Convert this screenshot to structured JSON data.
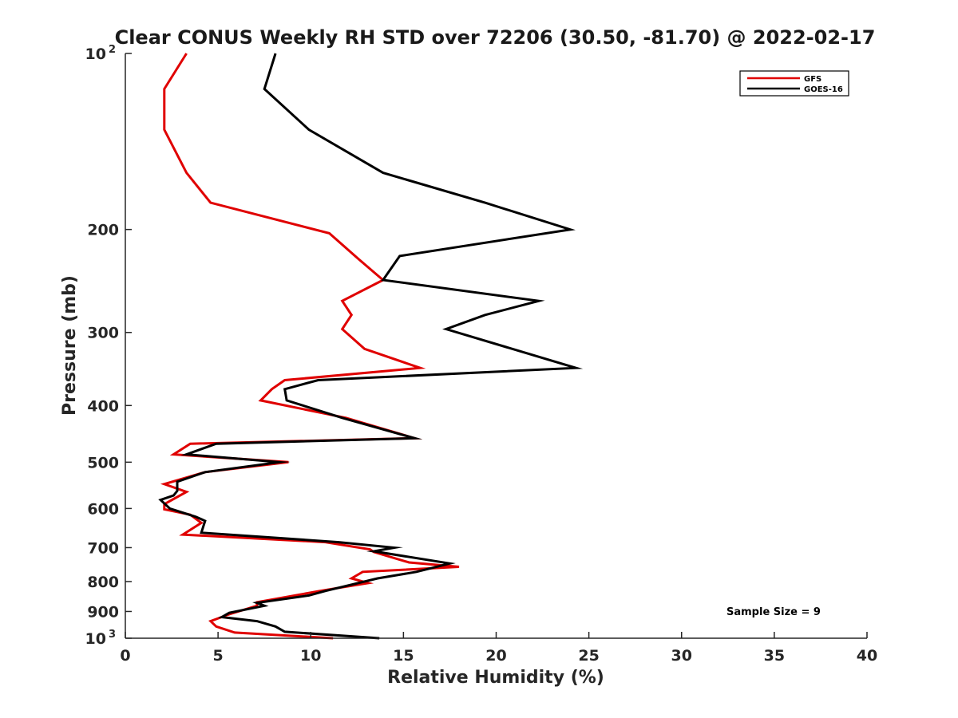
{
  "chart_data": {
    "type": "line",
    "title": "Clear CONUS Weekly RH STD over 72206 (30.50, -81.70) @ 2022-02-17",
    "xlabel": "Relative Humidity (%)",
    "ylabel": "Pressure (mb)",
    "xlim": [
      0,
      40
    ],
    "ylim": [
      100,
      1000
    ],
    "y_scale": "log",
    "y_reversed": true,
    "x_ticks": [
      "0",
      "5",
      "10",
      "15",
      "20",
      "25",
      "30",
      "35",
      "40"
    ],
    "y_ticks": [
      {
        "value": 100,
        "label": "10",
        "sup": "2"
      },
      {
        "value": 200,
        "label": "200",
        "sup": ""
      },
      {
        "value": 300,
        "label": "300",
        "sup": ""
      },
      {
        "value": 400,
        "label": "400",
        "sup": ""
      },
      {
        "value": 500,
        "label": "500",
        "sup": ""
      },
      {
        "value": 600,
        "label": "600",
        "sup": ""
      },
      {
        "value": 700,
        "label": "700",
        "sup": ""
      },
      {
        "value": 800,
        "label": "800",
        "sup": ""
      },
      {
        "value": 900,
        "label": "900",
        "sup": ""
      },
      {
        "value": 1000,
        "label": "10",
        "sup": "3"
      }
    ],
    "grid": false,
    "legend_position": "top-right",
    "annotation": "Sample Size = 9",
    "series": [
      {
        "name": "GFS",
        "color": "#e00000",
        "points": [
          [
            3.3,
            100
          ],
          [
            2.1,
            115
          ],
          [
            2.1,
            135
          ],
          [
            3.3,
            160
          ],
          [
            4.6,
            180
          ],
          [
            11.0,
            203
          ],
          [
            12.6,
            225
          ],
          [
            13.9,
            244
          ],
          [
            11.7,
            265
          ],
          [
            12.2,
            280
          ],
          [
            11.7,
            296
          ],
          [
            12.9,
            320
          ],
          [
            15.9,
            345
          ],
          [
            8.6,
            362
          ],
          [
            7.9,
            375
          ],
          [
            7.3,
            392
          ],
          [
            11.9,
            420
          ],
          [
            15.6,
            455
          ],
          [
            3.5,
            465
          ],
          [
            2.6,
            485
          ],
          [
            8.8,
            500
          ],
          [
            4.3,
            520
          ],
          [
            2.1,
            545
          ],
          [
            3.3,
            562
          ],
          [
            2.6,
            578
          ],
          [
            2.1,
            590
          ],
          [
            2.1,
            602
          ],
          [
            3.5,
            615
          ],
          [
            4.1,
            635
          ],
          [
            3.1,
            665
          ],
          [
            10.8,
            685
          ],
          [
            13.2,
            705
          ],
          [
            13.4,
            712
          ],
          [
            15.3,
            742
          ],
          [
            18.0,
            755
          ],
          [
            12.8,
            770
          ],
          [
            12.2,
            790
          ],
          [
            13.1,
            805
          ],
          [
            10.5,
            830
          ],
          [
            7.1,
            868
          ],
          [
            7.1,
            880
          ],
          [
            5.6,
            910
          ],
          [
            4.6,
            935
          ],
          [
            4.9,
            955
          ],
          [
            5.9,
            978
          ],
          [
            11.2,
            1000
          ]
        ]
      },
      {
        "name": "GOES-16",
        "color": "#000000",
        "points": [
          [
            8.1,
            100
          ],
          [
            7.5,
            115
          ],
          [
            9.9,
            135
          ],
          [
            13.9,
            160
          ],
          [
            19.4,
            180
          ],
          [
            24.0,
            200
          ],
          [
            14.8,
            222
          ],
          [
            13.9,
            244
          ],
          [
            22.3,
            265
          ],
          [
            19.4,
            280
          ],
          [
            17.3,
            296
          ],
          [
            24.3,
            345
          ],
          [
            10.4,
            362
          ],
          [
            8.6,
            375
          ],
          [
            8.7,
            392
          ],
          [
            11.7,
            420
          ],
          [
            15.6,
            455
          ],
          [
            4.9,
            465
          ],
          [
            3.3,
            485
          ],
          [
            8.3,
            500
          ],
          [
            4.3,
            520
          ],
          [
            2.8,
            540
          ],
          [
            2.8,
            560
          ],
          [
            2.6,
            570
          ],
          [
            1.9,
            580
          ],
          [
            2.4,
            600
          ],
          [
            3.8,
            620
          ],
          [
            4.3,
            630
          ],
          [
            4.1,
            660
          ],
          [
            11.5,
            685
          ],
          [
            14.5,
            700
          ],
          [
            13.4,
            710
          ],
          [
            17.5,
            745
          ],
          [
            15.7,
            770
          ],
          [
            13.6,
            790
          ],
          [
            10.8,
            830
          ],
          [
            9.9,
            845
          ],
          [
            7.1,
            870
          ],
          [
            7.5,
            880
          ],
          [
            5.6,
            905
          ],
          [
            5.2,
            920
          ],
          [
            7.1,
            935
          ],
          [
            8.1,
            955
          ],
          [
            8.6,
            975
          ],
          [
            13.7,
            1000
          ]
        ]
      }
    ]
  }
}
